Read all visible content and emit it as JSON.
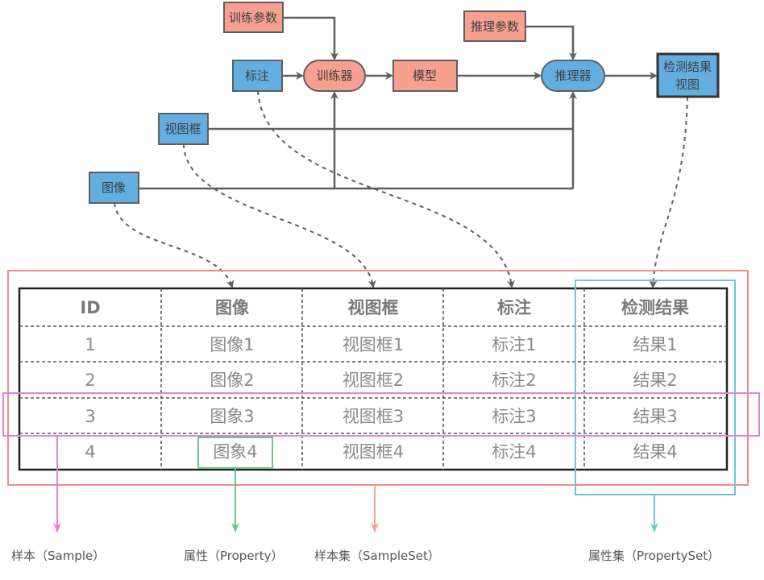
{
  "flow": {
    "train_params": "训练参数",
    "infer_params": "推理参数",
    "annotation": "标注",
    "trainer": "训练器",
    "model": "模型",
    "inferencer": "推理器",
    "result_view_line1": "检测结果",
    "result_view_line2": "视图",
    "view_box": "视图框",
    "image": "图像"
  },
  "colors": {
    "blue_node": "#62aee0",
    "salmon_node": "#f7a08f",
    "sampleset_box": "#f08a8a",
    "propertyset_box": "#6cc9c9",
    "sample_box": "#e57fe0",
    "property_box": "#6dc48a"
  },
  "table": {
    "headers": [
      "ID",
      "图像",
      "视图框",
      "标注",
      "检测结果"
    ],
    "rows": [
      [
        "1",
        "图像1",
        "视图框1",
        "标注1",
        "结果1"
      ],
      [
        "2",
        "图像2",
        "视图框2",
        "标注2",
        "结果2"
      ],
      [
        "3",
        "图象3",
        "视图框3",
        "标注3",
        "结果3"
      ],
      [
        "4",
        "图象4",
        "视图框4",
        "标注4",
        "结果4"
      ]
    ]
  },
  "legend": {
    "sample": "样本（Sample）",
    "property": "属性（Property）",
    "sampleset": "样本集（SampleSet）",
    "propertyset": "属性集（PropertySet）"
  }
}
